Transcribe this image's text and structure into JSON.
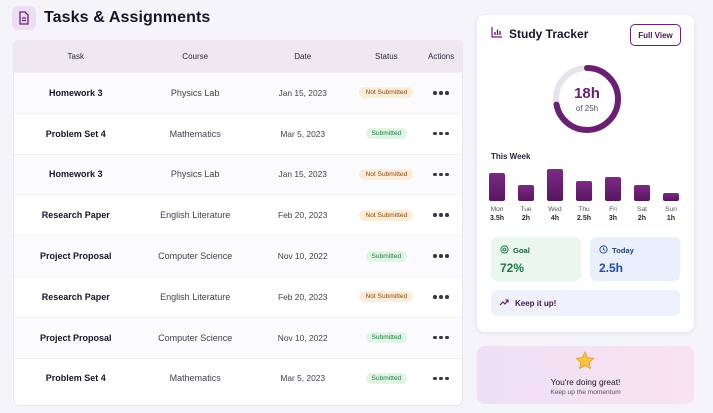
{
  "page": {
    "title": "Tasks & Assignments",
    "icon": "document-icon"
  },
  "table": {
    "headers": {
      "task": "Task",
      "course": "Course",
      "date": "Date",
      "status": "Status",
      "actions": "Actions"
    },
    "rows": [
      {
        "task": "Homework 3",
        "course": "Physics Lab",
        "date": "Jan 15, 2023",
        "status": "Not Submitted"
      },
      {
        "task": "Problem Set 4",
        "course": "Mathematics",
        "date": "Mar 5, 2023",
        "status": "Submitted"
      },
      {
        "task": "Homework 3",
        "course": "Physics Lab",
        "date": "Jan 15, 2023",
        "status": "Not Submitted"
      },
      {
        "task": "Research Paper",
        "course": "English Literature",
        "date": "Feb 20, 2023",
        "status": "Not Submitted"
      },
      {
        "task": "Project Proposal",
        "course": "Computer Science",
        "date": "Nov 10, 2022",
        "status": "Submitted"
      },
      {
        "task": "Research Paper",
        "course": "English Literature",
        "date": "Feb 20, 2023",
        "status": "Not Submitted"
      },
      {
        "task": "Project Proposal",
        "course": "Computer Science",
        "date": "Nov 10, 2022",
        "status": "Submitted"
      },
      {
        "task": "Problem Set 4",
        "course": "Mathematics",
        "date": "Mar 5, 2023",
        "status": "Submitted"
      }
    ],
    "status_colors": {
      "Not Submitted": "#fdecd8",
      "Submitted": "#e0f5e6"
    }
  },
  "tracker": {
    "title": "Study Tracker",
    "full_view_label": "Full View",
    "total_value": "18h",
    "total_caption": "of 25h",
    "progress": 0.72,
    "week_label": "This Week",
    "days": [
      {
        "day": "Mon",
        "hours": "3.5h",
        "value": 3.5
      },
      {
        "day": "Tue",
        "hours": "2h",
        "value": 2
      },
      {
        "day": "Wed",
        "hours": "4h",
        "value": 4
      },
      {
        "day": "Thu",
        "hours": "2.5h",
        "value": 2.5
      },
      {
        "day": "Fri",
        "hours": "3h",
        "value": 3
      },
      {
        "day": "Sat",
        "hours": "2h",
        "value": 2
      },
      {
        "day": "Sun",
        "hours": "1h",
        "value": 1
      }
    ],
    "goal_label": "Goal",
    "goal_value": "72%",
    "today_label": "Today",
    "today_value": "2.5h",
    "encouragement": "Keep it up!",
    "accent_color": "#6b1f73"
  },
  "cheer": {
    "title": "You're doing great!",
    "subtitle": "Keep up the momentum",
    "icon": "star-icon"
  }
}
